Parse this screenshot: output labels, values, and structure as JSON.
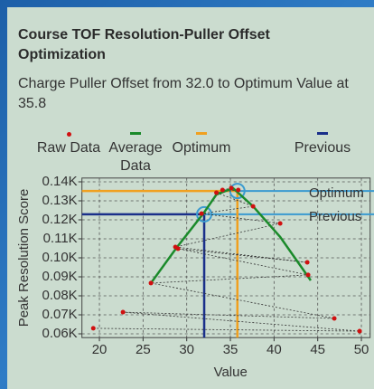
{
  "chart_data": {
    "type": "scatter",
    "title": "Course TOF Resolution-Puller Offset Optimization",
    "subtitle": "Charge Puller Offset from 32.0 to Optimum Value at 35.8",
    "xlabel": "Value",
    "ylabel": "Peak Resolution Score",
    "xlim": [
      18,
      51
    ],
    "ylim": [
      0.058,
      0.142
    ],
    "xticks": [
      20,
      25,
      30,
      35,
      40,
      45,
      50
    ],
    "yticks": [
      {
        "value": 0.06,
        "label": "0.06K"
      },
      {
        "value": 0.07,
        "label": "0.07K"
      },
      {
        "value": 0.08,
        "label": "0.08K"
      },
      {
        "value": 0.09,
        "label": "0.09K"
      },
      {
        "value": 0.1,
        "label": "0.10K"
      },
      {
        "value": 0.11,
        "label": "0.11K"
      },
      {
        "value": 0.12,
        "label": "0.12K"
      },
      {
        "value": 0.13,
        "label": "0.13K"
      },
      {
        "value": 0.14,
        "label": "0.14K"
      }
    ],
    "grid": true,
    "series": [
      {
        "name": "Raw Data",
        "color": "#d01010",
        "x": [
          19.3,
          49.8,
          22.7,
          46.9,
          25.9,
          43.9,
          29.0,
          43.8,
          28.7,
          40.7,
          31.7,
          37.6,
          33.4,
          35.9,
          34.1,
          35.1
        ],
        "values": [
          0.0629,
          0.0614,
          0.0714,
          0.0681,
          0.0867,
          0.091,
          0.1048,
          0.0976,
          0.1057,
          0.1181,
          0.1233,
          0.1271,
          0.1343,
          0.1357,
          0.1357,
          0.1367
        ]
      },
      {
        "name": "Average Data",
        "color": "#1a8a2a",
        "x": [
          25.9,
          28.9,
          31.9,
          33.4,
          35.3,
          37.6,
          40.7,
          44.2
        ],
        "values": [
          0.0867,
          0.1057,
          0.1233,
          0.1333,
          0.1367,
          0.1271,
          0.111,
          0.0881
        ]
      }
    ],
    "optimum": {
      "name": "Optimum",
      "color": "#f0a020",
      "x": 35.8,
      "y": 0.1352
    },
    "previous": {
      "name": "Previous",
      "color": "#1a2f8a",
      "x": 32.0,
      "y": 0.1229
    },
    "callout_color": "#3a9ad0"
  }
}
